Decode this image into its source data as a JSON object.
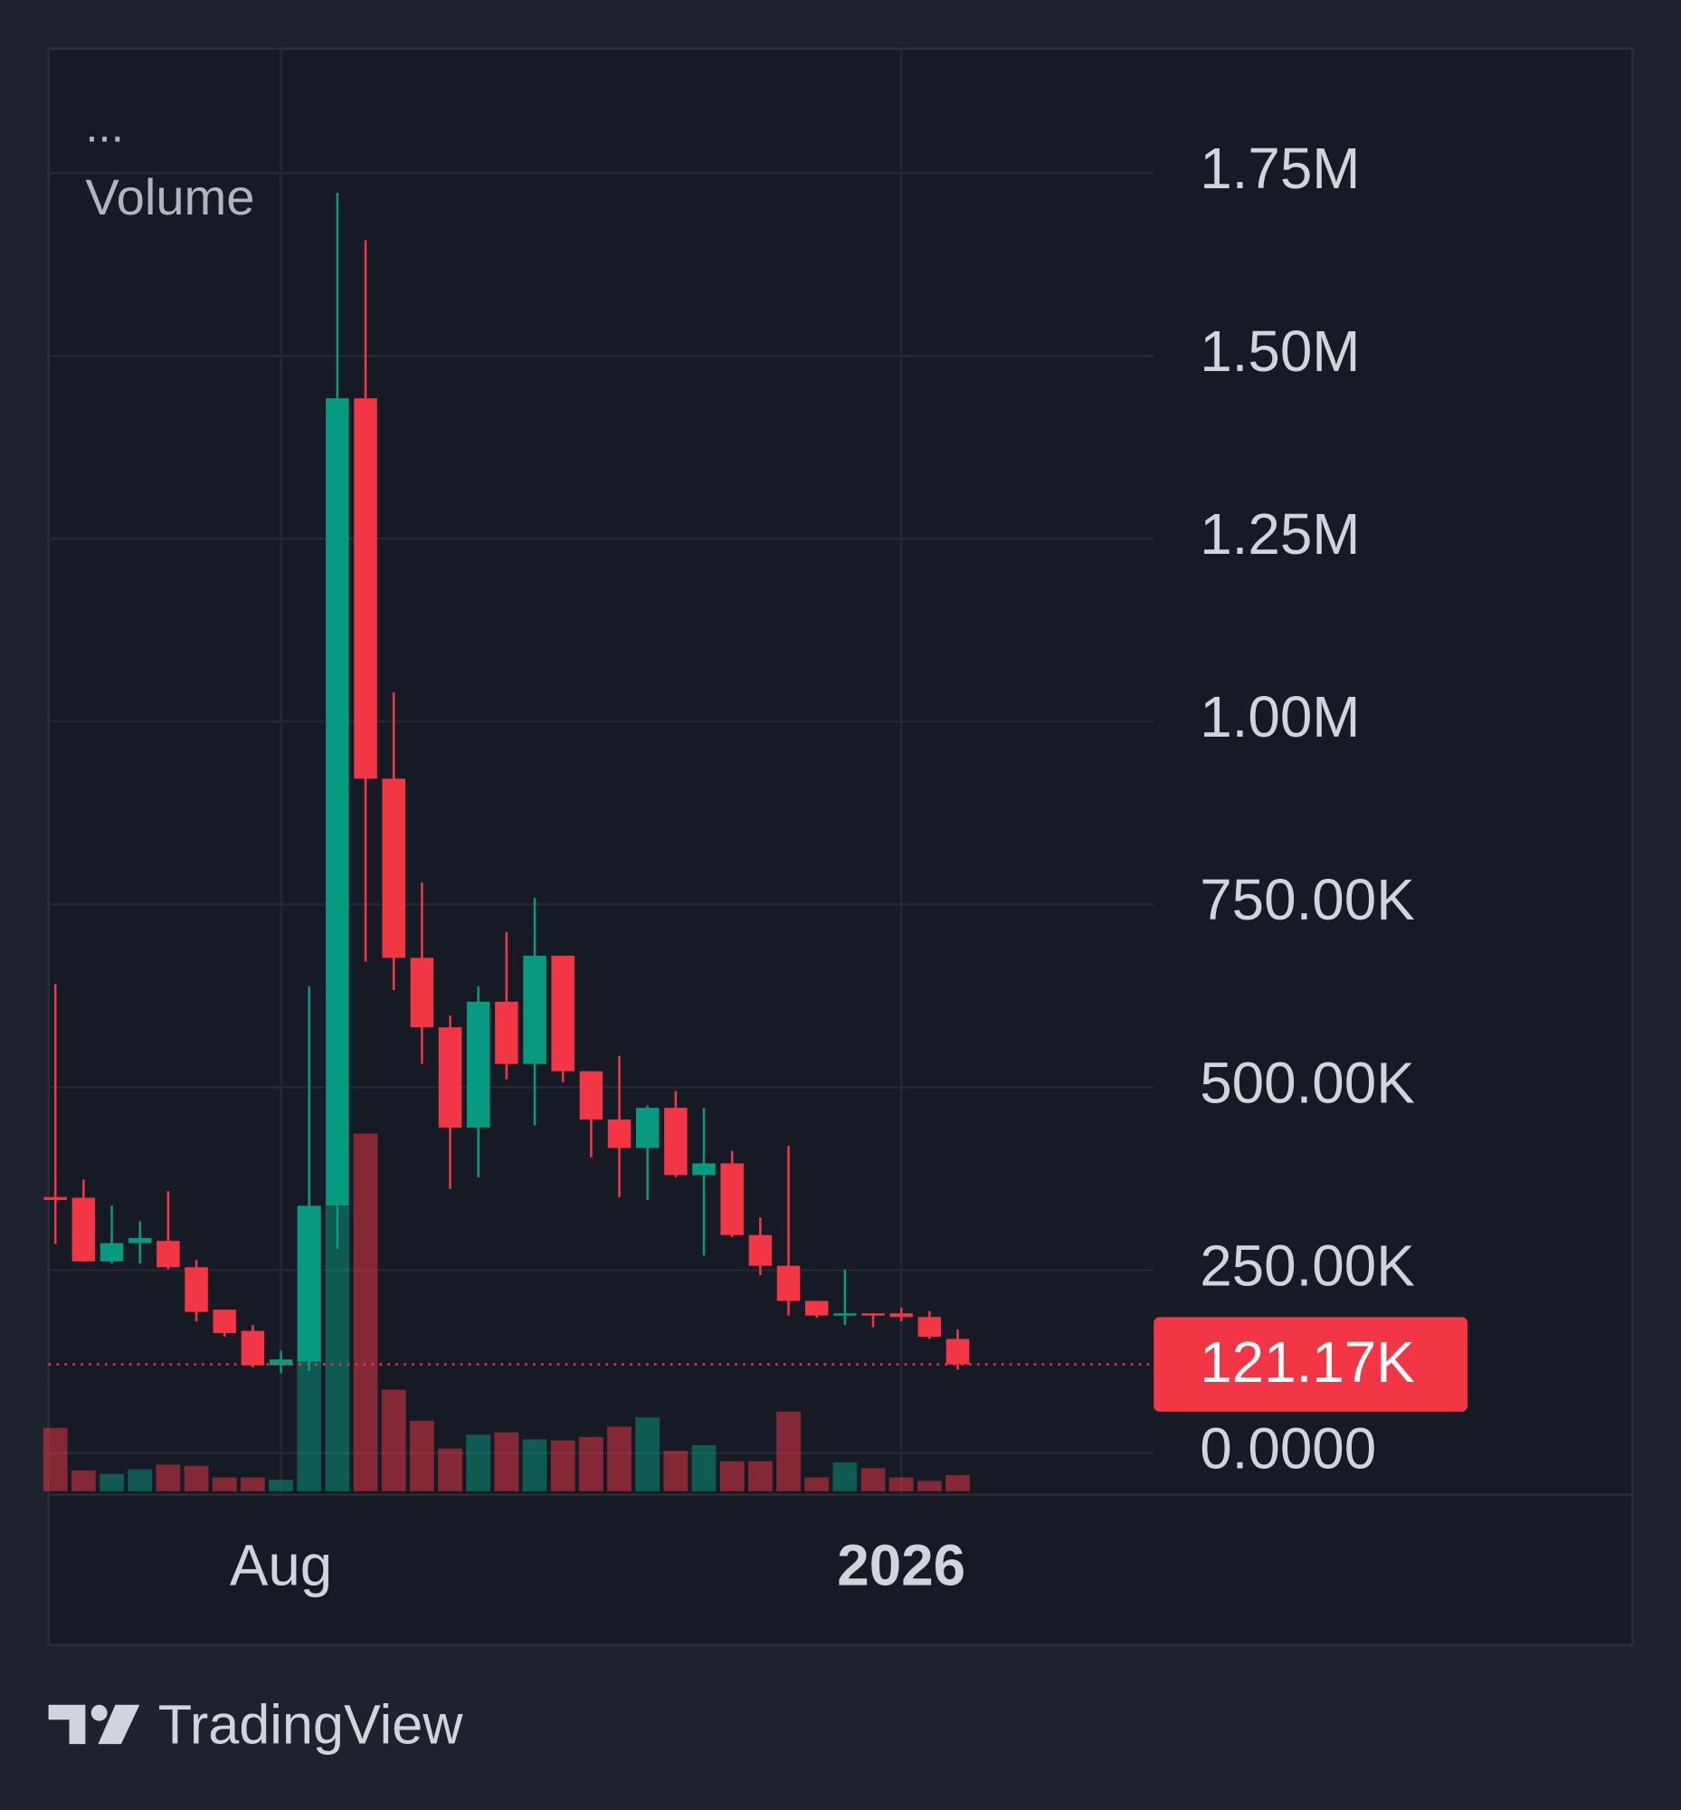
{
  "chart_data": {
    "type": "candlestick",
    "menu_label": "...",
    "indicator_label": "Volume",
    "categories": [
      null,
      null,
      null,
      null,
      null,
      null,
      null,
      null,
      "Aug",
      null,
      null,
      null,
      null,
      null,
      null,
      null,
      null,
      null,
      null,
      null,
      null,
      null,
      null,
      null,
      null,
      null,
      null,
      null,
      null,
      null,
      "2026",
      null,
      null
    ],
    "open": [
      350000,
      349000,
      262000,
      287000,
      290000,
      254000,
      196000,
      167000,
      120000,
      125000,
      338000,
      1442000,
      922000,
      677000,
      582000,
      445000,
      617000,
      532000,
      680000,
      522000,
      456000,
      417000,
      472000,
      380000,
      396000,
      298000,
      256000,
      208000,
      188000,
      191000,
      191000,
      186000,
      156000
    ],
    "high": [
      641000,
      374000,
      338000,
      317000,
      358000,
      264000,
      196000,
      175000,
      140000,
      638000,
      1723000,
      1658000,
      1040000,
      780000,
      598000,
      638000,
      712000,
      759000,
      680000,
      522000,
      543000,
      475000,
      495000,
      472000,
      413000,
      322000,
      420000,
      208000,
      251000,
      191000,
      199000,
      194000,
      169000
    ],
    "low": [
      286000,
      262000,
      259000,
      259000,
      251000,
      180000,
      159000,
      117000,
      109000,
      112000,
      279000,
      672000,
      633000,
      532000,
      361000,
      377000,
      511000,
      448000,
      507000,
      404000,
      350000,
      346000,
      377000,
      270000,
      295000,
      243000,
      188000,
      185000,
      175000,
      172000,
      180000,
      156000,
      114000
    ],
    "close": [
      346000,
      262000,
      287000,
      294000,
      254000,
      193000,
      164000,
      120000,
      128000,
      338000,
      1442000,
      922000,
      677000,
      582000,
      445000,
      617000,
      532000,
      680000,
      522000,
      456000,
      417000,
      472000,
      380000,
      396000,
      298000,
      256000,
      208000,
      188000,
      191000,
      188000,
      186000,
      159000,
      121170
    ],
    "volume": [
      55,
      18,
      15,
      19,
      23,
      22,
      12,
      12,
      10,
      247,
      247,
      310,
      88,
      61,
      37,
      49,
      51,
      45,
      44,
      47,
      56,
      64,
      35,
      40,
      26,
      26,
      69,
      12,
      25,
      20,
      12,
      9,
      14
    ],
    "up_color": "#089981",
    "down_color": "#f23645",
    "last_price": {
      "value": 121170,
      "label": "121.17K"
    },
    "ylim": [
      -57000,
      1920000
    ],
    "yticks": [
      {
        "value": 0,
        "label": "0.0000"
      },
      {
        "value": 250000,
        "label": "250.00K"
      },
      {
        "value": 500000,
        "label": "500.00K"
      },
      {
        "value": 750000,
        "label": "750.00K"
      },
      {
        "value": 1000000,
        "label": "1.00M"
      },
      {
        "value": 1250000,
        "label": "1.25M"
      },
      {
        "value": 1500000,
        "label": "1.50M"
      },
      {
        "value": 1750000,
        "label": "1.75M"
      }
    ],
    "grid": true
  },
  "footer": {
    "brand": "TradingView"
  }
}
